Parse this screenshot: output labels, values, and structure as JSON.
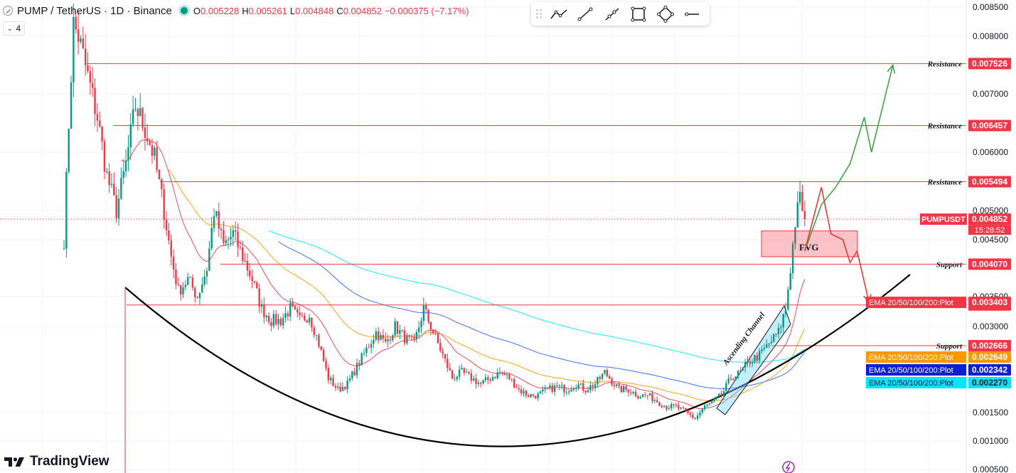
{
  "header": {
    "title": "PUMP / TetherUS · 1D · Binance",
    "ohlc": [
      {
        "k": "O",
        "v": "0.005228"
      },
      {
        "k": "H",
        "v": "0.005261"
      },
      {
        "k": "L",
        "v": "0.004848"
      },
      {
        "k": "C",
        "v": "0.004852"
      },
      {
        "k": "",
        "v": "−0.000375 (−7.17%)"
      }
    ],
    "indicator_count": "4"
  },
  "toolbar": {
    "tools": [
      "trend-line-icon",
      "line-icon",
      "ray-icon",
      "rectangle-icon",
      "path-icon",
      "horizontal-line-icon"
    ]
  },
  "brand": "TradingView",
  "colors": {
    "up": "#089981",
    "down": "#f23645",
    "level_line": "#f23645",
    "ema20": "#f23645",
    "ema50": "#ff9800",
    "ema100": "#2962ff",
    "ema200": "#00e5ff",
    "projection_up": "#43a047",
    "projection_down": "#e53935",
    "curve": "#000000",
    "channel": "#7ed7f7"
  },
  "chart_data": {
    "type": "candlestick",
    "symbol": "PUMPUSDT",
    "ylim": [
      0.0005,
      0.0085
    ],
    "y_ticks": [
      "0.008500",
      "0.008000",
      "0.007000",
      "0.006000",
      "0.005000",
      "0.004500",
      "0.003500",
      "0.003000",
      "0.001500",
      "0.001000",
      "0.000500"
    ],
    "price_label": {
      "name": "PUMPUSDT",
      "value": "0.004852",
      "countdown": "15:28:52"
    },
    "levels": [
      {
        "label": "Resistance",
        "value": 0.007526,
        "value_text": "0.007526"
      },
      {
        "label": "Resistance",
        "value": 0.006457,
        "value_text": "0.006457"
      },
      {
        "label": "Resistance",
        "value": 0.005494,
        "value_text": "0.005494"
      },
      {
        "label": "Support",
        "value": 0.00407,
        "value_text": "0.004070"
      },
      {
        "label": "",
        "value": 0.00336,
        "value_text": "0.003360"
      },
      {
        "label": "Support",
        "value": 0.002666,
        "value_text": "0.002666"
      }
    ],
    "ema_labels": [
      {
        "label": "EMA 20/50/100/200:Plot",
        "value": 0.003403,
        "value_text": "0.003403",
        "color": "#f23645"
      },
      {
        "label": "EMA 20/50/100/200:Plot",
        "value": 0.002649,
        "value_text": "0.002649",
        "color": "#ff9800"
      },
      {
        "label": "EMA 20/50/100/200:Plot",
        "value": 0.002342,
        "value_text": "0.002342",
        "color": "#0d1fd6"
      },
      {
        "label": "EMA 20/50/100/200:Plot",
        "value": 0.00227,
        "value_text": "0.002270",
        "color": "#00e5ff"
      }
    ],
    "annotations": {
      "fvg": {
        "label": "FVG",
        "low": 0.0042,
        "high": 0.00465
      },
      "channel": {
        "label": "Ascending Channel"
      }
    },
    "close_path": [
      [
        0,
        0.0045
      ],
      [
        2,
        0.0065
      ],
      [
        4,
        0.0082
      ],
      [
        6,
        0.008
      ],
      [
        10,
        0.0073
      ],
      [
        14,
        0.0066
      ],
      [
        18,
        0.0056
      ],
      [
        22,
        0.005
      ],
      [
        26,
        0.0058
      ],
      [
        30,
        0.0068
      ],
      [
        34,
        0.0064
      ],
      [
        38,
        0.0059
      ],
      [
        42,
        0.005
      ],
      [
        45,
        0.0042
      ],
      [
        48,
        0.0036
      ],
      [
        52,
        0.0038
      ],
      [
        56,
        0.0035
      ],
      [
        60,
        0.004
      ],
      [
        63,
        0.005
      ],
      [
        67,
        0.0044
      ],
      [
        71,
        0.0046
      ],
      [
        75,
        0.0042
      ],
      [
        79,
        0.0038
      ],
      [
        83,
        0.0033
      ],
      [
        87,
        0.0031
      ],
      [
        91,
        0.0031
      ],
      [
        95,
        0.0033
      ],
      [
        99,
        0.0031
      ],
      [
        103,
        0.0032
      ],
      [
        107,
        0.0027
      ],
      [
        111,
        0.0021
      ],
      [
        115,
        0.0019
      ],
      [
        119,
        0.002
      ],
      [
        123,
        0.0023
      ],
      [
        127,
        0.0026
      ],
      [
        131,
        0.0029
      ],
      [
        135,
        0.0027
      ],
      [
        139,
        0.003
      ],
      [
        143,
        0.0028
      ],
      [
        147,
        0.0027
      ],
      [
        151,
        0.0033
      ],
      [
        155,
        0.0029
      ],
      [
        159,
        0.0025
      ],
      [
        163,
        0.0021
      ],
      [
        167,
        0.0022
      ],
      [
        171,
        0.0021
      ],
      [
        175,
        0.002
      ],
      [
        179,
        0.0021
      ],
      [
        183,
        0.0022
      ],
      [
        187,
        0.0021
      ],
      [
        191,
        0.0019
      ],
      [
        195,
        0.0018
      ],
      [
        199,
        0.0018
      ],
      [
        203,
        0.0019
      ],
      [
        207,
        0.00195
      ],
      [
        211,
        0.0019
      ],
      [
        215,
        0.002
      ],
      [
        219,
        0.0019
      ],
      [
        223,
        0.002
      ],
      [
        227,
        0.0022
      ],
      [
        229,
        0.0021
      ],
      [
        233,
        0.0019
      ],
      [
        237,
        0.0019
      ],
      [
        241,
        0.0018
      ],
      [
        245,
        0.0018
      ],
      [
        249,
        0.0017
      ],
      [
        253,
        0.0016
      ],
      [
        257,
        0.0016
      ],
      [
        261,
        0.0015
      ],
      [
        265,
        0.0014
      ],
      [
        269,
        0.0016
      ],
      [
        273,
        0.0017
      ],
      [
        276,
        0.0018
      ],
      [
        280,
        0.0021
      ],
      [
        284,
        0.0022
      ],
      [
        288,
        0.0024
      ],
      [
        292,
        0.0025
      ],
      [
        296,
        0.0027
      ],
      [
        300,
        0.0029
      ],
      [
        303,
        0.0033
      ],
      [
        305,
        0.004
      ],
      [
        307,
        0.0048
      ],
      [
        309,
        0.0052
      ],
      [
        311,
        0.0049
      ]
    ],
    "projection_green": [
      [
        311,
        0.0043
      ],
      [
        318,
        0.0051
      ],
      [
        324,
        0.0054
      ],
      [
        330,
        0.0058
      ],
      [
        336,
        0.0066
      ],
      [
        339,
        0.006
      ],
      [
        348,
        0.0075
      ]
    ],
    "projection_red": [
      [
        311,
        0.0043
      ],
      [
        318,
        0.0054
      ],
      [
        322,
        0.0046
      ],
      [
        327,
        0.0045
      ],
      [
        330,
        0.0041
      ],
      [
        333,
        0.0043
      ],
      [
        338,
        0.0034
      ]
    ]
  }
}
